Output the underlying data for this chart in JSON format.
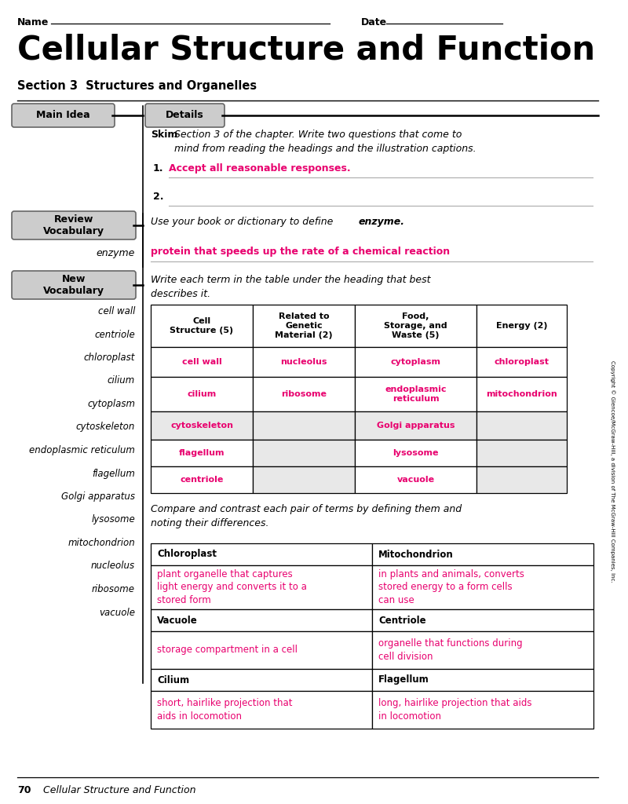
{
  "title": "Cellular Structure and Function",
  "subtitle": "Section 3  Structures and Organelles",
  "name_label": "Name",
  "date_label": "Date",
  "main_idea_label": "Main Idea",
  "details_label": "Details",
  "skim_bold": "Skim",
  "skim_italic": " Section 3 of the chapter. Write two questions that come to\nmind from reading the headings and the illustration captions.",
  "answer1": "Accept all reasonable responses.",
  "review_vocab_label": "Review\nVocabulary",
  "review_vocab_inst_plain": "Use your book or dictionary to define ",
  "review_vocab_inst_bold_italic": "enzyme.",
  "enzyme_label": "enzyme",
  "enzyme_answer": "protein that speeds up the rate of a chemical reaction",
  "new_vocab_label": "New\nVocabulary",
  "new_vocab_instruction": "Write each term in the table under the heading that best\ndescribes it.",
  "vocab_list": [
    "cell wall",
    "centriole",
    "chloroplast",
    "cilium",
    "cytoplasm",
    "cytoskeleton",
    "endoplasmic reticulum",
    "flagellum",
    "Golgi apparatus",
    "lysosome",
    "mitochondrion",
    "nucleolus",
    "ribosome",
    "vacuole"
  ],
  "table1_headers": [
    "Cell\nStructure (5)",
    "Related to\nGenetic\nMaterial (2)",
    "Food,\nStorage, and\nWaste (5)",
    "Energy (2)"
  ],
  "table1_rows": [
    [
      "cell wall",
      "nucleolus",
      "cytoplasm",
      "chloroplast"
    ],
    [
      "cilium",
      "ribosome",
      "endoplasmic\nreticulum",
      "mitochondrion"
    ],
    [
      "cytoskeleton",
      "",
      "Golgi apparatus",
      ""
    ],
    [
      "flagellum",
      "",
      "lysosome",
      ""
    ],
    [
      "centriole",
      "",
      "vacuole",
      ""
    ]
  ],
  "table1_row_colors": [
    [
      "white",
      "white",
      "white",
      "white"
    ],
    [
      "white",
      "white",
      "white",
      "white"
    ],
    [
      "#e8e8e8",
      "#e8e8e8",
      "#e8e8e8",
      "#e8e8e8"
    ],
    [
      "white",
      "#e8e8e8",
      "white",
      "#e8e8e8"
    ],
    [
      "white",
      "#e8e8e8",
      "white",
      "#e8e8e8"
    ]
  ],
  "compare_text_bold": "Compare and contrast each pair of terms by defining them and\nnoting their differences.",
  "table2_data": [
    [
      "Chloroplast",
      "Mitochondrion"
    ],
    [
      "plant organelle that captures\nlight energy and converts it to a\nstored form",
      "in plants and animals, converts\nstored energy to a form cells\ncan use"
    ],
    [
      "Vacuole",
      "Centriole"
    ],
    [
      "storage compartment in a cell",
      "organelle that functions during\ncell division"
    ],
    [
      "Cilium",
      "Flagellum"
    ],
    [
      "short, hairlike projection that\naids in locomotion",
      "long, hairlike projection that aids\nin locomotion"
    ]
  ],
  "footer_page": "70",
  "footer_title": "Cellular Structure and Function",
  "pink": "#E8006E",
  "bg_color": "#ffffff",
  "copyright_text": "Copyright © Glencoe/McGraw-Hill, a division of The McGraw-Hill Companies, Inc."
}
